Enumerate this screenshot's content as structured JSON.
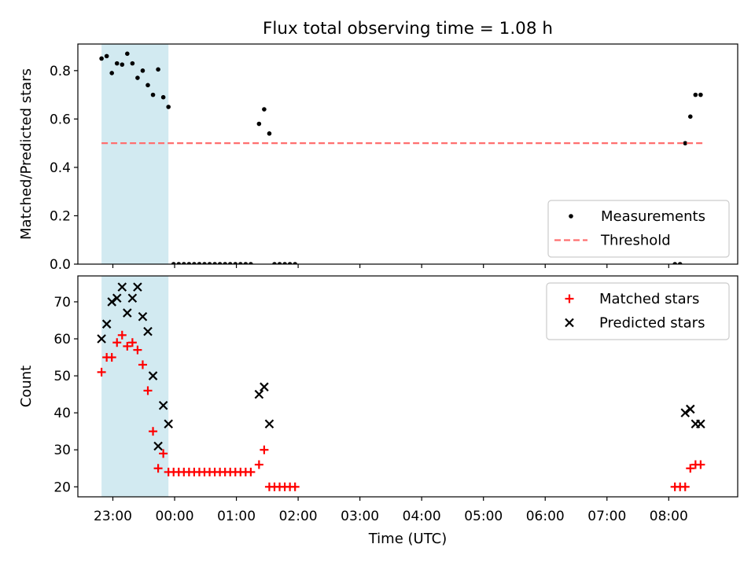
{
  "figure_title": "Flux total observing time = 1.08 h",
  "colors": {
    "shade": "#add8e6",
    "measurement": "#000000",
    "threshold": "#ff6f6f",
    "matched": "#ff0000",
    "predicted": "#000000",
    "frame": "#000000"
  },
  "x_axis": {
    "label": "Time (UTC)",
    "ticks": [
      "23:00",
      "00:00",
      "01:00",
      "02:00",
      "03:00",
      "04:00",
      "05:00",
      "06:00",
      "07:00",
      "08:00"
    ]
  },
  "chart_data": [
    {
      "type": "scatter",
      "ylabel": "Matched/Predicted stars",
      "xlim": [
        "22:26",
        "09:07"
      ],
      "ylim": [
        0,
        0.91
      ],
      "yticks": [
        "0.0",
        "0.2",
        "0.4",
        "0.6",
        "0.8"
      ],
      "shaded_span": [
        "22:49",
        "23:54"
      ],
      "legend_position": "lower-right",
      "series": [
        {
          "name": "Measurements",
          "marker": "dot",
          "points": [
            [
              "22:49",
              0.85
            ],
            [
              "22:54",
              0.86
            ],
            [
              "22:59",
              0.79
            ],
            [
              "23:04",
              0.83
            ],
            [
              "23:09",
              0.825
            ],
            [
              "23:14",
              0.87
            ],
            [
              "23:19",
              0.83
            ],
            [
              "23:24",
              0.77
            ],
            [
              "23:29",
              0.8
            ],
            [
              "23:34",
              0.74
            ],
            [
              "23:39",
              0.7
            ],
            [
              "23:44",
              0.805
            ],
            [
              "23:49",
              0.69
            ],
            [
              "23:54",
              0.65
            ],
            [
              "23:59",
              0
            ],
            [
              "00:04",
              0
            ],
            [
              "00:09",
              0
            ],
            [
              "00:14",
              0
            ],
            [
              "00:19",
              0
            ],
            [
              "00:24",
              0
            ],
            [
              "00:29",
              0
            ],
            [
              "00:34",
              0
            ],
            [
              "00:39",
              0
            ],
            [
              "00:44",
              0
            ],
            [
              "00:49",
              0
            ],
            [
              "00:54",
              0
            ],
            [
              "00:59",
              0
            ],
            [
              "01:04",
              0
            ],
            [
              "01:09",
              0
            ],
            [
              "01:14",
              0
            ],
            [
              "01:22",
              0.58
            ],
            [
              "01:27",
              0.64
            ],
            [
              "01:32",
              0.54
            ],
            [
              "01:37",
              0
            ],
            [
              "01:42",
              0
            ],
            [
              "01:47",
              0
            ],
            [
              "01:52",
              0
            ],
            [
              "01:57",
              0
            ],
            [
              "08:06",
              0
            ],
            [
              "08:11",
              0
            ],
            [
              "08:16",
              0.5
            ],
            [
              "08:21",
              0.61
            ],
            [
              "08:26",
              0.7
            ],
            [
              "08:31",
              0.7
            ]
          ]
        },
        {
          "name": "Threshold",
          "marker": "dashed-line",
          "points": [
            [
              "22:49",
              0.5
            ],
            [
              "08:33",
              0.5
            ]
          ]
        }
      ]
    },
    {
      "type": "scatter",
      "ylabel": "Count",
      "xlim": [
        "22:26",
        "09:07"
      ],
      "ylim": [
        17.3,
        77
      ],
      "yticks": [
        "20",
        "30",
        "40",
        "50",
        "60",
        "70"
      ],
      "shaded_span": [
        "22:49",
        "23:54"
      ],
      "legend_position": "upper-right",
      "series": [
        {
          "name": "Matched stars",
          "marker": "plus",
          "points": [
            [
              "22:49",
              51
            ],
            [
              "22:54",
              55
            ],
            [
              "22:59",
              55
            ],
            [
              "23:04",
              59
            ],
            [
              "23:09",
              61
            ],
            [
              "23:14",
              58
            ],
            [
              "23:19",
              59
            ],
            [
              "23:24",
              57
            ],
            [
              "23:29",
              53
            ],
            [
              "23:34",
              46
            ],
            [
              "23:39",
              35
            ],
            [
              "23:44",
              25
            ],
            [
              "23:49",
              29
            ],
            [
              "23:54",
              24
            ],
            [
              "23:59",
              24
            ],
            [
              "00:04",
              24
            ],
            [
              "00:09",
              24
            ],
            [
              "00:14",
              24
            ],
            [
              "00:19",
              24
            ],
            [
              "00:24",
              24
            ],
            [
              "00:29",
              24
            ],
            [
              "00:34",
              24
            ],
            [
              "00:39",
              24
            ],
            [
              "00:44",
              24
            ],
            [
              "00:49",
              24
            ],
            [
              "00:54",
              24
            ],
            [
              "00:59",
              24
            ],
            [
              "01:04",
              24
            ],
            [
              "01:09",
              24
            ],
            [
              "01:14",
              24
            ],
            [
              "01:22",
              26
            ],
            [
              "01:27",
              30
            ],
            [
              "01:32",
              20
            ],
            [
              "01:37",
              20
            ],
            [
              "01:42",
              20
            ],
            [
              "01:47",
              20
            ],
            [
              "01:52",
              20
            ],
            [
              "01:57",
              20
            ],
            [
              "08:06",
              20
            ],
            [
              "08:11",
              20
            ],
            [
              "08:16",
              20
            ],
            [
              "08:21",
              25
            ],
            [
              "08:26",
              26
            ],
            [
              "08:31",
              26
            ]
          ]
        },
        {
          "name": "Predicted stars",
          "marker": "x",
          "points": [
            [
              "22:49",
              60
            ],
            [
              "22:54",
              64
            ],
            [
              "22:59",
              70
            ],
            [
              "23:04",
              71
            ],
            [
              "23:09",
              74
            ],
            [
              "23:14",
              67
            ],
            [
              "23:19",
              71
            ],
            [
              "23:24",
              74
            ],
            [
              "23:29",
              66
            ],
            [
              "23:34",
              62
            ],
            [
              "23:39",
              50
            ],
            [
              "23:44",
              31
            ],
            [
              "23:49",
              42
            ],
            [
              "23:54",
              37
            ],
            [
              "01:22",
              45
            ],
            [
              "01:27",
              47
            ],
            [
              "01:32",
              37
            ],
            [
              "08:16",
              40
            ],
            [
              "08:21",
              41
            ],
            [
              "08:26",
              37
            ],
            [
              "08:31",
              37
            ]
          ]
        }
      ]
    }
  ]
}
